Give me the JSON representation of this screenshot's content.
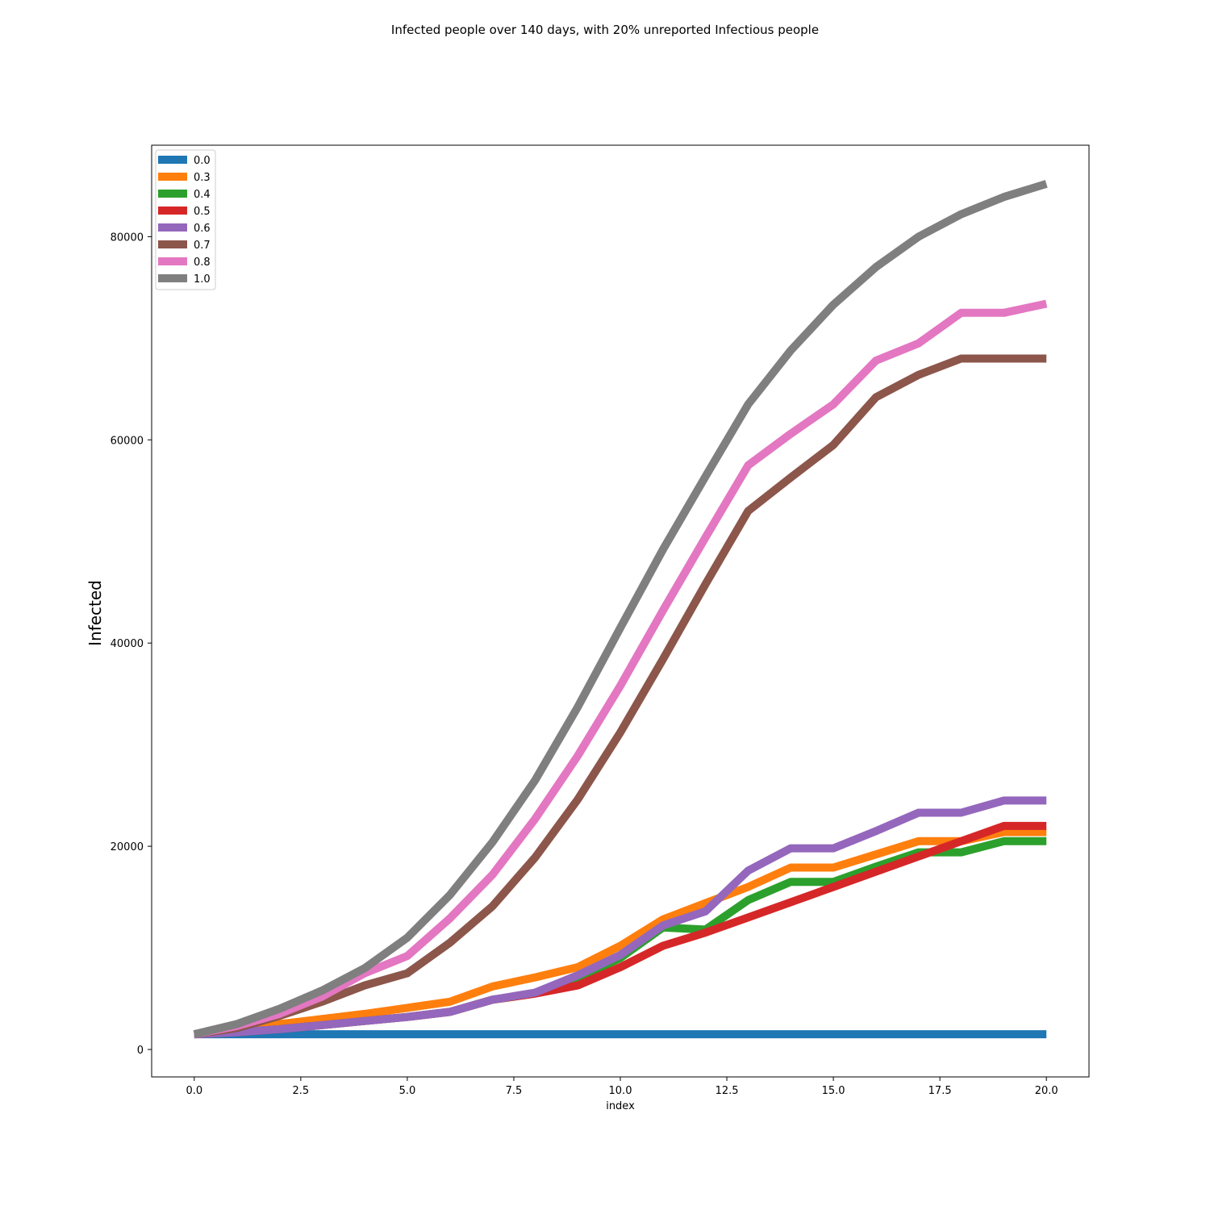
{
  "chart_data": {
    "type": "line",
    "title": "Infected people over 140 days, with 20% unreported Infectious people",
    "xlabel": "index",
    "ylabel": "Infected",
    "xlim": [
      -1,
      21
    ],
    "ylim": [
      -2700,
      89000
    ],
    "xticks": [
      0.0,
      2.5,
      5.0,
      7.5,
      10.0,
      12.5,
      15.0,
      17.5,
      20.0
    ],
    "xtick_labels": [
      "0.0",
      "2.5",
      "5.0",
      "7.5",
      "10.0",
      "12.5",
      "15.0",
      "17.5",
      "20.0"
    ],
    "yticks": [
      0,
      20000,
      40000,
      60000,
      80000
    ],
    "ytick_labels": [
      "0",
      "20000",
      "40000",
      "60000",
      "80000"
    ],
    "legend_position": "top-left",
    "grid": false,
    "x": [
      0,
      1,
      2,
      3,
      4,
      5,
      6,
      7,
      8,
      9,
      10,
      11,
      12,
      13,
      14,
      15,
      16,
      17,
      18,
      19,
      20
    ],
    "series": [
      {
        "name": "0.0",
        "color": "#1f77b4",
        "values": [
          1500,
          1500,
          1500,
          1500,
          1500,
          1500,
          1500,
          1500,
          1500,
          1500,
          1500,
          1500,
          1500,
          1500,
          1500,
          1500,
          1500,
          1500,
          1500,
          1500,
          1500
        ]
      },
      {
        "name": "0.3",
        "color": "#ff7f0e",
        "values": [
          1500,
          1900,
          2500,
          3000,
          3500,
          4100,
          4700,
          6200,
          7100,
          8100,
          10200,
          12800,
          14400,
          16000,
          17900,
          17900,
          19200,
          20500,
          20500,
          21400,
          21400
        ]
      },
      {
        "name": "0.4",
        "color": "#2ca02c",
        "values": [
          1500,
          1700,
          2000,
          2400,
          2800,
          3200,
          3700,
          4900,
          5500,
          7000,
          9000,
          12000,
          11800,
          14700,
          16500,
          16500,
          18000,
          19400,
          19400,
          20500,
          20500
        ]
      },
      {
        "name": "0.5",
        "color": "#d62728",
        "values": [
          1500,
          1700,
          2000,
          2400,
          2800,
          3200,
          3700,
          4900,
          5500,
          6300,
          8100,
          10200,
          11500,
          13000,
          14500,
          16000,
          17500,
          19000,
          20500,
          22000,
          22000
        ]
      },
      {
        "name": "0.6",
        "color": "#9467bd",
        "values": [
          1500,
          1700,
          2000,
          2400,
          2800,
          3200,
          3700,
          4900,
          5600,
          7300,
          9300,
          12200,
          13600,
          17600,
          19800,
          19800,
          21500,
          23300,
          23300,
          24500,
          24500
        ]
      },
      {
        "name": "0.7",
        "color": "#8c564b",
        "values": [
          1500,
          2100,
          3300,
          4700,
          6300,
          7500,
          10500,
          14100,
          18900,
          24600,
          31200,
          38400,
          45800,
          53000,
          56300,
          59500,
          64200,
          66400,
          68000,
          68000,
          68000
        ]
      },
      {
        "name": "0.8",
        "color": "#e377c2",
        "values": [
          1500,
          2300,
          3500,
          5200,
          7500,
          9200,
          12900,
          17200,
          22700,
          28900,
          35800,
          43200,
          50400,
          57500,
          60600,
          63500,
          67800,
          69500,
          72500,
          72500,
          73400
        ]
      },
      {
        "name": "1.0",
        "color": "#7f7f7f",
        "values": [
          1500,
          2500,
          4000,
          5800,
          8000,
          11000,
          15200,
          20400,
          26500,
          33700,
          41500,
          49200,
          56400,
          63500,
          68800,
          73300,
          77000,
          80000,
          82200,
          83900,
          85200
        ]
      }
    ]
  }
}
